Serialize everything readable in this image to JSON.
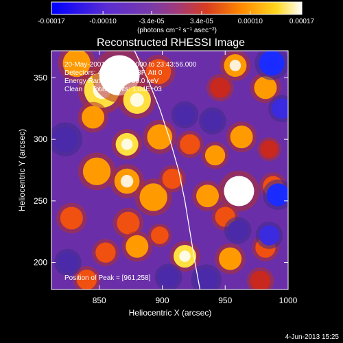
{
  "chart_data": {
    "type": "heatmap",
    "title": "Reconstructed RHESSI Image",
    "xlabel": "Heliocentric X (arcsec)",
    "ylabel": "Heliocentric Y (arcsec)",
    "xlim": [
      812,
      1000
    ],
    "ylim": [
      178,
      372
    ],
    "xticks": [
      850,
      900,
      950,
      1000
    ],
    "yticks": [
      200,
      250,
      300,
      350
    ],
    "colorbar": {
      "min": -0.00017,
      "max": 0.00017,
      "tick_labels": [
        "-0.00017",
        "-0.00010",
        "-3.4e-05",
        "3.4e-05",
        "0.00010",
        "0.00017"
      ],
      "unit_label": "(photons cm⁻² s⁻¹ asec⁻²)"
    },
    "annotations": [
      "20-May-2001 23:42:24.000 to 23:43:56.000",
      "Detectors: 4F 5F 6F 7F 8F, Att 0",
      "Energy Range: 25.0 - 50.0 keV",
      "Clean     Total counts: 1.04E+03"
    ],
    "peak_label": "Position of Peak = [961,258]",
    "peak_position": [
      961,
      258
    ],
    "limb_curve": [
      [
        878,
        372
      ],
      [
        888,
        350
      ],
      [
        898,
        325
      ],
      [
        906,
        300
      ],
      [
        913,
        275
      ],
      [
        918,
        250
      ],
      [
        922,
        225
      ],
      [
        926,
        200
      ],
      [
        930,
        178
      ]
    ],
    "blobs": [
      {
        "x": 832,
        "y": 362,
        "v": 0.7,
        "r": 11
      },
      {
        "x": 852,
        "y": 340,
        "v": 0.85,
        "r": 14
      },
      {
        "x": 866,
        "y": 352,
        "v": 1.0,
        "r": 16
      },
      {
        "x": 880,
        "y": 332,
        "v": 0.8,
        "r": 11
      },
      {
        "x": 845,
        "y": 318,
        "v": 0.65,
        "r": 9
      },
      {
        "x": 897,
        "y": 355,
        "v": 0.55,
        "r": 10
      },
      {
        "x": 958,
        "y": 360,
        "v": 0.75,
        "r": 9
      },
      {
        "x": 982,
        "y": 342,
        "v": 0.7,
        "r": 9
      },
      {
        "x": 946,
        "y": 342,
        "v": 0.45,
        "r": 8
      },
      {
        "x": 898,
        "y": 302,
        "v": 0.7,
        "r": 10
      },
      {
        "x": 872,
        "y": 296,
        "v": 0.8,
        "r": 9
      },
      {
        "x": 922,
        "y": 296,
        "v": 0.6,
        "r": 8
      },
      {
        "x": 942,
        "y": 287,
        "v": 0.65,
        "r": 8
      },
      {
        "x": 963,
        "y": 302,
        "v": 0.7,
        "r": 9
      },
      {
        "x": 985,
        "y": 292,
        "v": 0.45,
        "r": 7
      },
      {
        "x": 848,
        "y": 274,
        "v": 0.7,
        "r": 11
      },
      {
        "x": 872,
        "y": 266,
        "v": 0.75,
        "r": 10
      },
      {
        "x": 893,
        "y": 253,
        "v": 0.7,
        "r": 11
      },
      {
        "x": 908,
        "y": 268,
        "v": 0.5,
        "r": 8
      },
      {
        "x": 936,
        "y": 254,
        "v": 0.65,
        "r": 9
      },
      {
        "x": 961,
        "y": 258,
        "v": 1.0,
        "r": 12
      },
      {
        "x": 988,
        "y": 262,
        "v": 0.55,
        "r": 8
      },
      {
        "x": 873,
        "y": 232,
        "v": 0.6,
        "r": 9
      },
      {
        "x": 950,
        "y": 237,
        "v": 0.55,
        "r": 8
      },
      {
        "x": 828,
        "y": 236,
        "v": 0.5,
        "r": 9
      },
      {
        "x": 855,
        "y": 208,
        "v": 0.6,
        "r": 8
      },
      {
        "x": 880,
        "y": 213,
        "v": 0.7,
        "r": 9
      },
      {
        "x": 898,
        "y": 222,
        "v": 0.55,
        "r": 7
      },
      {
        "x": 918,
        "y": 205,
        "v": 0.8,
        "r": 9
      },
      {
        "x": 954,
        "y": 203,
        "v": 0.65,
        "r": 9
      },
      {
        "x": 982,
        "y": 212,
        "v": 0.6,
        "r": 8
      },
      {
        "x": 840,
        "y": 186,
        "v": 0.55,
        "r": 8
      },
      {
        "x": 978,
        "y": 185,
        "v": 0.45,
        "r": 8
      },
      {
        "x": 987,
        "y": 362,
        "v": -0.85,
        "r": 10
      },
      {
        "x": 995,
        "y": 325,
        "v": -0.6,
        "r": 8
      },
      {
        "x": 992,
        "y": 255,
        "v": -0.75,
        "r": 9
      },
      {
        "x": 960,
        "y": 226,
        "v": -0.5,
        "r": 8
      },
      {
        "x": 985,
        "y": 222,
        "v": -0.6,
        "r": 8
      },
      {
        "x": 823,
        "y": 300,
        "v": -0.4,
        "r": 10
      },
      {
        "x": 825,
        "y": 200,
        "v": -0.45,
        "r": 8
      },
      {
        "x": 935,
        "y": 186,
        "v": -0.4,
        "r": 9
      },
      {
        "x": 905,
        "y": 188,
        "v": -0.35,
        "r": 8
      },
      {
        "x": 918,
        "y": 320,
        "v": -0.35,
        "r": 8
      },
      {
        "x": 940,
        "y": 315,
        "v": -0.3,
        "r": 8
      }
    ]
  },
  "footer": {
    "date": "4-Jun-2013 15:25"
  }
}
